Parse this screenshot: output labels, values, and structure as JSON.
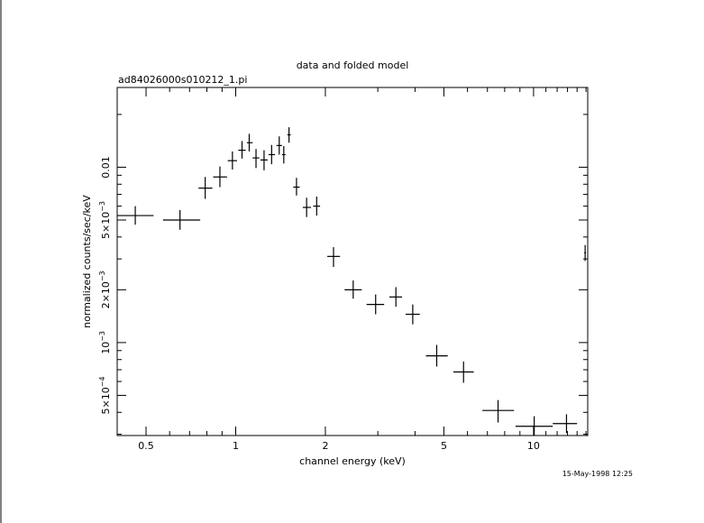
{
  "chart_data": {
    "type": "scatter",
    "title": "data and folded model",
    "subtitle": "ad84026000s010212_1.pi",
    "xlabel": "channel energy (keV)",
    "ylabel": "normalized counts/sec/keV",
    "timestamp": "15-May-1998 12:25",
    "x_scale": "log",
    "y_scale": "log",
    "xlim": [
      0.4,
      15.2
    ],
    "ylim": [
      0.000295,
      0.0285
    ],
    "grid": false,
    "x_ticks": [
      {
        "value": 0.5,
        "label": "0.5"
      },
      {
        "value": 1,
        "label": "1"
      },
      {
        "value": 2,
        "label": "2"
      },
      {
        "value": 5,
        "label": "5"
      },
      {
        "value": 10,
        "label": "10"
      }
    ],
    "y_ticks": [
      {
        "value": 0.0005,
        "label": "5×10",
        "exp": "−4"
      },
      {
        "value": 0.001,
        "label": "10",
        "exp": "−3"
      },
      {
        "value": 0.002,
        "label": "2×10",
        "exp": "−3"
      },
      {
        "value": 0.005,
        "label": "5×10",
        "exp": "−3"
      },
      {
        "value": 0.01,
        "label": "0.01",
        "exp": ""
      }
    ],
    "points": [
      {
        "x": 0.46,
        "xlo": 0.4,
        "xhi": 0.53,
        "y": 0.0053,
        "ylo": 0.0047,
        "yhi": 0.006
      },
      {
        "x": 0.65,
        "xlo": 0.57,
        "xhi": 0.76,
        "y": 0.005,
        "ylo": 0.0044,
        "yhi": 0.0057
      },
      {
        "x": 0.79,
        "xlo": 0.75,
        "xhi": 0.835,
        "y": 0.0076,
        "ylo": 0.0066,
        "yhi": 0.0088
      },
      {
        "x": 0.885,
        "xlo": 0.84,
        "xhi": 0.935,
        "y": 0.0088,
        "ylo": 0.0077,
        "yhi": 0.0101
      },
      {
        "x": 0.975,
        "xlo": 0.94,
        "xhi": 1.01,
        "y": 0.0109,
        "ylo": 0.0097,
        "yhi": 0.0123
      },
      {
        "x": 1.05,
        "xlo": 1.02,
        "xhi": 1.08,
        "y": 0.0125,
        "ylo": 0.0112,
        "yhi": 0.0141
      },
      {
        "x": 1.11,
        "xlo": 1.09,
        "xhi": 1.14,
        "y": 0.0138,
        "ylo": 0.0123,
        "yhi": 0.0155
      },
      {
        "x": 1.17,
        "xlo": 1.14,
        "xhi": 1.2,
        "y": 0.0113,
        "ylo": 0.0099,
        "yhi": 0.0127
      },
      {
        "x": 1.245,
        "xlo": 1.21,
        "xhi": 1.28,
        "y": 0.011,
        "ylo": 0.0096,
        "yhi": 0.0125
      },
      {
        "x": 1.32,
        "xlo": 1.29,
        "xhi": 1.355,
        "y": 0.0118,
        "ylo": 0.0104,
        "yhi": 0.0134
      },
      {
        "x": 1.4,
        "xlo": 1.37,
        "xhi": 1.43,
        "y": 0.0133,
        "ylo": 0.0118,
        "yhi": 0.015
      },
      {
        "x": 1.45,
        "xlo": 1.43,
        "xhi": 1.47,
        "y": 0.0118,
        "ylo": 0.0105,
        "yhi": 0.0132
      },
      {
        "x": 1.51,
        "xlo": 1.49,
        "xhi": 1.53,
        "y": 0.0153,
        "ylo": 0.0138,
        "yhi": 0.0169
      },
      {
        "x": 1.6,
        "xlo": 1.56,
        "xhi": 1.64,
        "y": 0.0077,
        "ylo": 0.0069,
        "yhi": 0.0087
      },
      {
        "x": 1.73,
        "xlo": 1.68,
        "xhi": 1.79,
        "y": 0.0059,
        "ylo": 0.0052,
        "yhi": 0.0067
      },
      {
        "x": 1.87,
        "xlo": 1.82,
        "xhi": 1.92,
        "y": 0.006,
        "ylo": 0.0053,
        "yhi": 0.0068
      },
      {
        "x": 2.13,
        "xlo": 2.03,
        "xhi": 2.24,
        "y": 0.0031,
        "ylo": 0.0027,
        "yhi": 0.0035
      },
      {
        "x": 2.48,
        "xlo": 2.32,
        "xhi": 2.65,
        "y": 0.002,
        "ylo": 0.00178,
        "yhi": 0.00226
      },
      {
        "x": 2.95,
        "xlo": 2.75,
        "xhi": 3.15,
        "y": 0.00165,
        "ylo": 0.00145,
        "yhi": 0.00188
      },
      {
        "x": 3.45,
        "xlo": 3.28,
        "xhi": 3.62,
        "y": 0.00182,
        "ylo": 0.0016,
        "yhi": 0.00207
      },
      {
        "x": 3.93,
        "xlo": 3.72,
        "xhi": 4.15,
        "y": 0.00145,
        "ylo": 0.00127,
        "yhi": 0.00165
      },
      {
        "x": 4.73,
        "xlo": 4.35,
        "xhi": 5.15,
        "y": 0.00084,
        "ylo": 0.00073,
        "yhi": 0.00097
      },
      {
        "x": 5.82,
        "xlo": 5.38,
        "xhi": 6.3,
        "y": 0.00068,
        "ylo": 0.00059,
        "yhi": 0.00078
      },
      {
        "x": 7.6,
        "xlo": 6.73,
        "xhi": 8.6,
        "y": 0.00041,
        "ylo": 0.00035,
        "yhi": 0.00047
      },
      {
        "x": 10.05,
        "xlo": 8.7,
        "xhi": 11.6,
        "y": 0.000333,
        "ylo": 0.000295,
        "yhi": 0.00038
      },
      {
        "x": 12.9,
        "xlo": 11.6,
        "xhi": 14.0,
        "y": 0.000345,
        "ylo": 0.000305,
        "yhi": 0.00039
      },
      {
        "x": 14.9,
        "xlo": 14.8,
        "xhi": 15.0,
        "y": 0.00325,
        "ylo": 0.00292,
        "yhi": 0.0036
      }
    ]
  }
}
